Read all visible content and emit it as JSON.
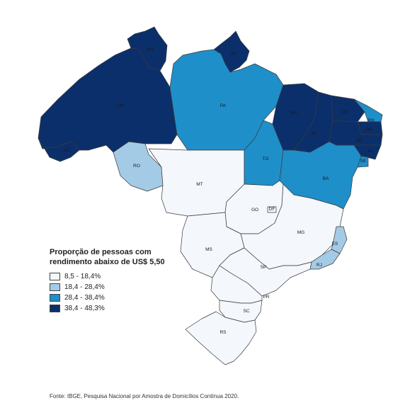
{
  "legend": {
    "title_line1": "Proporção de pessoas com",
    "title_line2": "rendimento abaixo de US$ 5,50",
    "classes": [
      {
        "label": "8,5 - 18,4%",
        "color": "#f4f7fb"
      },
      {
        "label": "18,4 - 28,4%",
        "color": "#a4cbe6"
      },
      {
        "label": "28,4 - 38,4%",
        "color": "#1f8fca"
      },
      {
        "label": "38,4 - 48,3%",
        "color": "#0b2f6b"
      }
    ]
  },
  "source": "Fonte: IBGE, Pesquisa Nacional por Amostra de Domicílios Contínua 2020.",
  "states": [
    {
      "uf": "AM",
      "class": 3
    },
    {
      "uf": "RR",
      "class": 3
    },
    {
      "uf": "AP",
      "class": 3
    },
    {
      "uf": "PA",
      "class": 2
    },
    {
      "uf": "AC",
      "class": 3
    },
    {
      "uf": "RO",
      "class": 1
    },
    {
      "uf": "MT",
      "class": 0
    },
    {
      "uf": "TO",
      "class": 2
    },
    {
      "uf": "MA",
      "class": 3
    },
    {
      "uf": "PI",
      "class": 3
    },
    {
      "uf": "CE",
      "class": 3
    },
    {
      "uf": "RN",
      "class": 2
    },
    {
      "uf": "PB",
      "class": 3
    },
    {
      "uf": "PE",
      "class": 3
    },
    {
      "uf": "AL",
      "class": 3
    },
    {
      "uf": "SE",
      "class": 2
    },
    {
      "uf": "BA",
      "class": 2
    },
    {
      "uf": "GO",
      "class": 0
    },
    {
      "uf": "DF",
      "class": 0
    },
    {
      "uf": "MG",
      "class": 0
    },
    {
      "uf": "ES",
      "class": 1
    },
    {
      "uf": "RJ",
      "class": 1
    },
    {
      "uf": "MS",
      "class": 0
    },
    {
      "uf": "SP",
      "class": 0
    },
    {
      "uf": "PR",
      "class": 0
    },
    {
      "uf": "SC",
      "class": 0
    },
    {
      "uf": "RS",
      "class": 0
    }
  ]
}
